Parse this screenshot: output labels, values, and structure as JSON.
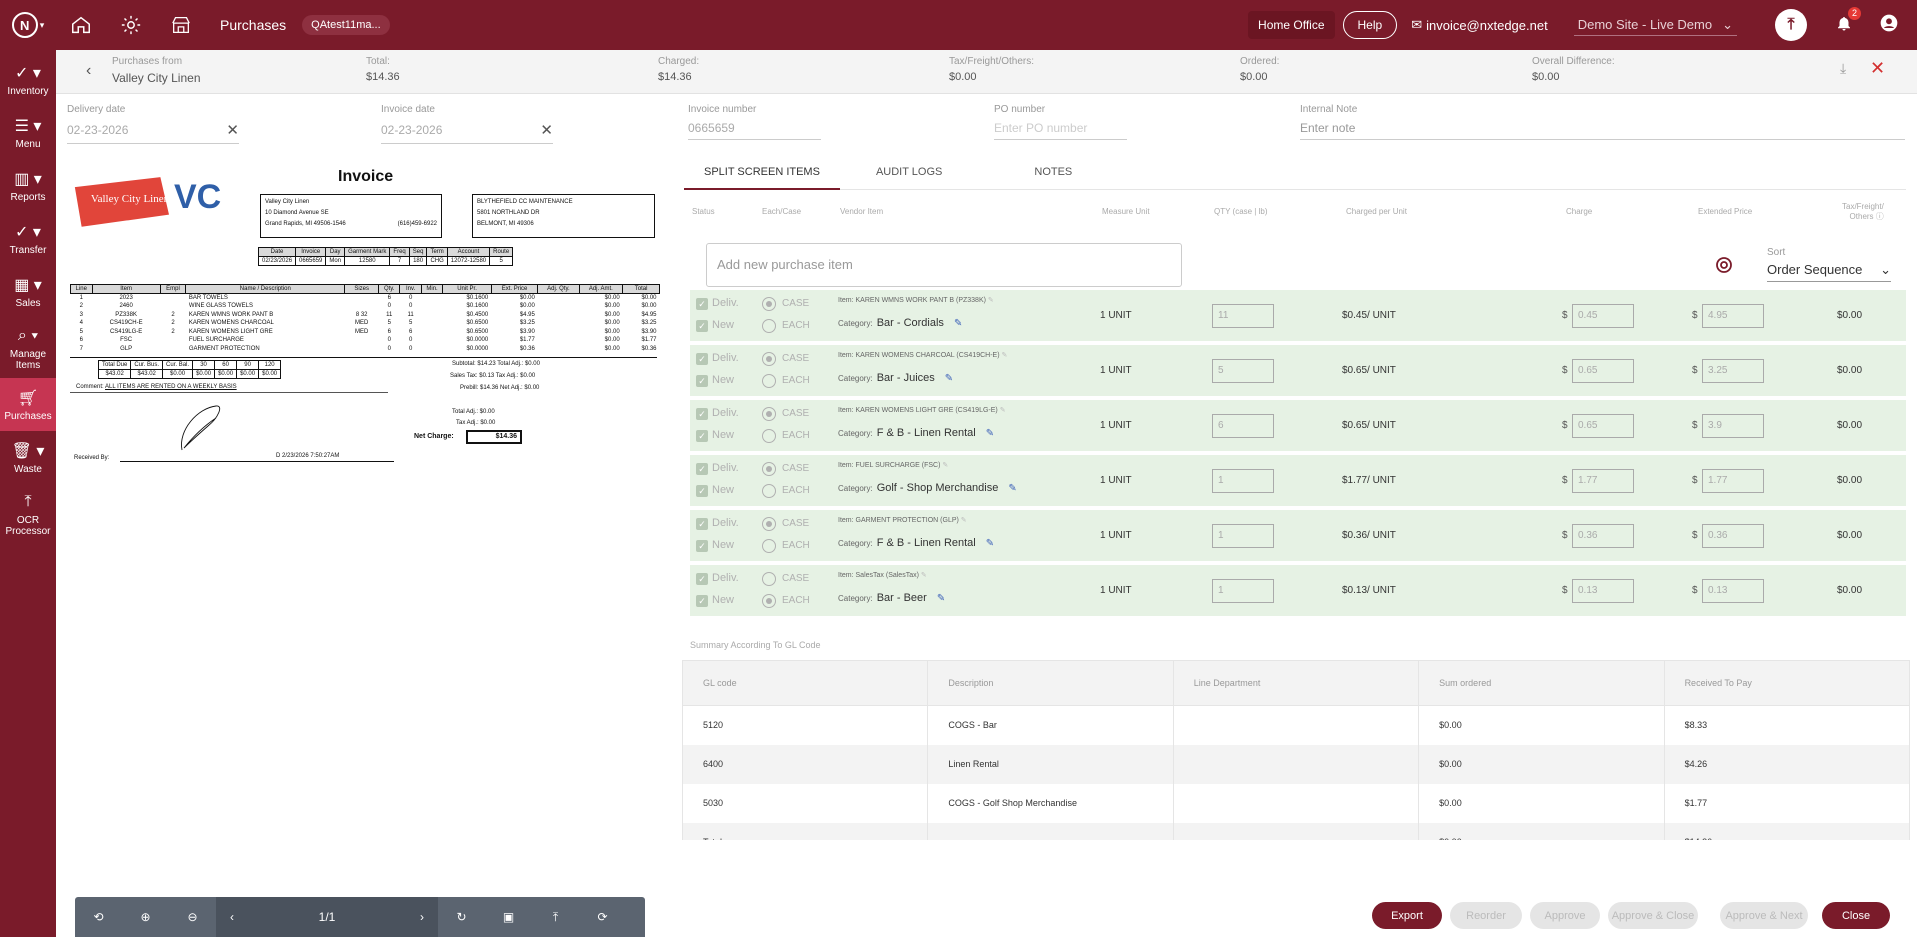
{
  "topbar": {
    "title": "Purchases",
    "user_pill": "QAtest11ma...",
    "home_office": "Home Office",
    "help": "Help",
    "email": "invoice@nxtedge.net",
    "site": "Demo Site - Live Demo",
    "notification_count": "2"
  },
  "sidebar": {
    "items": [
      {
        "label": "Inventory"
      },
      {
        "label": "Menu"
      },
      {
        "label": "Reports"
      },
      {
        "label": "Transfer"
      },
      {
        "label": "Sales"
      },
      {
        "label": "Manage Items"
      },
      {
        "label": "Purchases"
      },
      {
        "label": "Waste"
      },
      {
        "label": "OCR Processor"
      }
    ]
  },
  "summary": {
    "purchases_from_label": "Purchases from",
    "purchases_from": "Valley City Linen",
    "total_label": "Total:",
    "total": "$14.36",
    "charged_label": "Charged:",
    "charged": "$14.36",
    "tax_label": "Tax/Freight/Others:",
    "tax": "$0.00",
    "ordered_label": "Ordered:",
    "ordered": "$0.00",
    "diff_label": "Overall Difference:",
    "diff": "$0.00"
  },
  "fields": {
    "delivery_label": "Delivery date",
    "delivery": "02-23-2026",
    "invoice_date_label": "Invoice date",
    "invoice_date": "02-23-2026",
    "invoice_number_label": "Invoice number",
    "invoice_number": "0665659",
    "po_label": "PO number",
    "po_placeholder": "Enter PO number",
    "note_label": "Internal Note",
    "note_placeholder": "Enter note"
  },
  "invoice_doc": {
    "logo_text": "Valley City Linen",
    "logo_mark": "VC",
    "title": "Invoice",
    "from_lines": [
      "Valley City Linen",
      "10 Diamond Avenue SE",
      "Grand Rapids, MI 49506-1546"
    ],
    "from_phone": "(616)459-6922",
    "to_lines": [
      "BLYTHEFIELD CC MAINTENANCE",
      "5801 NORTHLAND DR",
      "BELMONT, MI 49306"
    ],
    "hdr_cols": [
      "Date",
      "Invoice",
      "Day",
      "Garment Mark",
      "Freq",
      "Seq",
      "Term",
      "Account",
      "Route"
    ],
    "hdr_vals": [
      "02/23/2026",
      "0665659",
      "Mon",
      "12580",
      "7",
      "180",
      "CHG",
      "12072-12580",
      "5"
    ],
    "line_cols": [
      "Line",
      "Item",
      "Empl",
      "Name / Description",
      "Sizes",
      "Qty.",
      "Inv.",
      "Min.",
      "Unit Pr.",
      "Ext. Price",
      "Adj. Qty.",
      "Adj. Amt.",
      "Total"
    ],
    "lines": [
      [
        "1",
        "2023",
        "",
        "BAR TOWELS",
        "",
        "6",
        "0",
        "",
        "$0.1600",
        "$0.00",
        "",
        "$0.00",
        "$0.00"
      ],
      [
        "2",
        "2460",
        "",
        "WINE GLASS TOWELS",
        "",
        "0",
        "0",
        "",
        "$0.1600",
        "$0.00",
        "",
        "$0.00",
        "$0.00"
      ],
      [
        "3",
        "PZ338K",
        "2",
        "KAREN      WMNS WORK PANT B",
        "8 32",
        "11",
        "11",
        "",
        "$0.4500",
        "$4.95",
        "",
        "$0.00",
        "$4.95"
      ],
      [
        "4",
        "CS419CH-E",
        "2",
        "KAREN      WOMENS CHARCOAL",
        "MED",
        "5",
        "5",
        "",
        "$0.6500",
        "$3.25",
        "",
        "$0.00",
        "$3.25"
      ],
      [
        "5",
        "CS419LG-E",
        "2",
        "KAREN      WOMENS LIGHT GRE",
        "MED",
        "6",
        "6",
        "",
        "$0.6500",
        "$3.90",
        "",
        "$0.00",
        "$3.90"
      ],
      [
        "6",
        "FSC",
        "",
        "FUEL SURCHARGE",
        "",
        "0",
        "0",
        "",
        "$0.0000",
        "$1.77",
        "",
        "$0.00",
        "$1.77"
      ],
      [
        "7",
        "GLP",
        "",
        "GARMENT PROTECTION",
        "",
        "0",
        "0",
        "",
        "$0.0000",
        "$0.36",
        "",
        "$0.00",
        "$0.36"
      ]
    ],
    "due_cols": [
      "Total Due",
      "Cur. Bus.",
      "Cur. Bal.",
      "30",
      "60",
      "90",
      "120"
    ],
    "due_vals": [
      "$43.02",
      "$43.02",
      "$0.00",
      "$0.00",
      "$0.00",
      "$0.00",
      "$0.00"
    ],
    "subtotal": "Subtotal:        $14.23     Total Adj.:           $0.00",
    "salestax": "Sales Tax:         $0.13     Tax Adj.:            $0.00",
    "prebill": "Prebill:        $14.36     Net Adj.:             $0.00",
    "comment_label": "Comment:",
    "comment": "ALL ITEMS ARE RENTED ON A WEEKLY BASIS",
    "total_adj": "Total Adj.:        $0.00",
    "tax_adj": "Tax Adj.:         $0.00",
    "net_charge_label": "Net Charge:",
    "net_charge": "$14.36",
    "received_by": "Received By:",
    "received_meta": "D        2/23/2026  7:50:27AM"
  },
  "pdf_toolbar": {
    "page": "1/1"
  },
  "tabs": [
    "SPLIT SCREEN ITEMS",
    "AUDIT LOGS",
    "NOTES"
  ],
  "columns": {
    "status": "Status",
    "each_case": "Each/Case",
    "vendor_item": "Vendor Item",
    "measure": "Measure Unit",
    "qty": "QTY (case | lb)",
    "charged_per_unit": "Charged per Unit",
    "charge": "Charge",
    "extended": "Extended Price",
    "tax": "Tax/Freight/",
    "tax2": "Others"
  },
  "add_item_placeholder": "Add new purchase item",
  "sort": {
    "label": "Sort",
    "value": "Order Sequence"
  },
  "row_labels": {
    "deliv": "Deliv.",
    "new": "New",
    "case": "CASE",
    "each": "EACH",
    "item_prefix": "Item:",
    "category": "Category:",
    "dollar": "$"
  },
  "items": [
    {
      "name": "KAREN WMNS WORK PANT B (PZ338K)",
      "category": "Bar - Cordials",
      "measure": "1 UNIT",
      "qty": "11",
      "cpu": "$0.45/ UNIT",
      "charge": "0.45",
      "extended": "4.95",
      "tax": "$0.00",
      "case_selected": true
    },
    {
      "name": "KAREN WOMENS CHARCOAL (CS419CH-E)",
      "category": "Bar - Juices",
      "measure": "1 UNIT",
      "qty": "5",
      "cpu": "$0.65/ UNIT",
      "charge": "0.65",
      "extended": "3.25",
      "tax": "$0.00",
      "case_selected": true
    },
    {
      "name": "KAREN WOMENS LIGHT GRE (CS419LG-E)",
      "category": "F & B - Linen Rental",
      "measure": "1 UNIT",
      "qty": "6",
      "cpu": "$0.65/ UNIT",
      "charge": "0.65",
      "extended": "3.9",
      "tax": "$0.00",
      "case_selected": true
    },
    {
      "name": "FUEL SURCHARGE (FSC)",
      "category": "Golf - Shop Merchandise",
      "measure": "1 UNIT",
      "qty": "1",
      "cpu": "$1.77/ UNIT",
      "charge": "1.77",
      "extended": "1.77",
      "tax": "$0.00",
      "case_selected": true
    },
    {
      "name": "GARMENT PROTECTION (GLP)",
      "category": "F & B - Linen Rental",
      "measure": "1 UNIT",
      "qty": "1",
      "cpu": "$0.36/ UNIT",
      "charge": "0.36",
      "extended": "0.36",
      "tax": "$0.00",
      "case_selected": true
    },
    {
      "name": "SalesTax (SalesTax)",
      "category": "Bar - Beer",
      "measure": "1 UNIT",
      "qty": "1",
      "cpu": "$0.13/ UNIT",
      "charge": "0.13",
      "extended": "0.13",
      "tax": "$0.00",
      "case_selected": false
    }
  ],
  "gl": {
    "title": "Summary According To GL Code",
    "headers": [
      "GL code",
      "Description",
      "Line Department",
      "Sum ordered",
      "Received To Pay"
    ],
    "rows": [
      [
        "5120",
        "COGS - Bar",
        "",
        "$0.00",
        "$8.33"
      ],
      [
        "6400",
        "Linen Rental",
        "",
        "$0.00",
        "$4.26"
      ],
      [
        "5030",
        "COGS - Golf Shop Merchandise",
        "",
        "$0.00",
        "$1.77"
      ],
      [
        "Total",
        "",
        "",
        "$0.00",
        "$14.36"
      ]
    ]
  },
  "buttons": {
    "export": "Export",
    "reorder": "Reorder",
    "approve": "Approve",
    "approve_close": "Approve & Close",
    "approve_next": "Approve & Next",
    "close": "Close"
  }
}
